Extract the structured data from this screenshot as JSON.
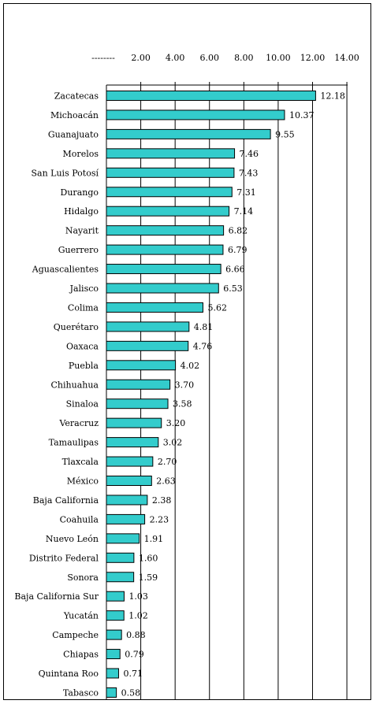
{
  "chart_data": {
    "type": "bar",
    "orientation": "horizontal",
    "axis_leader": "--------",
    "xlim": [
      0,
      14
    ],
    "x_ticks": [
      "2.00",
      "4.00",
      "6.00",
      "8.00",
      "10.00",
      "12.00",
      "14.00"
    ],
    "grid": true,
    "bar_color": "#33CCCC",
    "categories": [
      "Zacatecas",
      "Michoacán",
      "Guanajuato",
      "Morelos",
      "San Luis Potosí",
      "Durango",
      "Hidalgo",
      "Nayarit",
      "Guerrero",
      "Aguascalientes",
      "Jalisco",
      "Colima",
      "Querétaro",
      "Oaxaca",
      "Puebla",
      "Chihuahua",
      "Sinaloa",
      "Veracruz",
      "Tamaulipas",
      "Tlaxcala",
      "México",
      "Baja California",
      "Coahuila",
      "Nuevo León",
      "Distrito Federal",
      "Sonora",
      "Baja California Sur",
      "Yucatán",
      "Campeche",
      "Chiapas",
      "Quintana Roo",
      "Tabasco"
    ],
    "values": [
      12.18,
      10.37,
      9.55,
      7.46,
      7.43,
      7.31,
      7.14,
      6.82,
      6.79,
      6.66,
      6.53,
      5.62,
      4.81,
      4.76,
      4.02,
      3.7,
      3.58,
      3.2,
      3.02,
      2.7,
      2.63,
      2.38,
      2.23,
      1.91,
      1.6,
      1.59,
      1.03,
      1.02,
      0.88,
      0.79,
      0.71,
      0.58
    ],
    "value_labels": [
      "12.18",
      "10.37",
      "9.55",
      "7.46",
      "7.43",
      "7.31",
      "7.14",
      "6.82",
      "6.79",
      "6.66",
      "6.53",
      "5.62",
      "4.81",
      "4.76",
      "4.02",
      "3.70",
      "3.58",
      "3.20",
      "3.02",
      "2.70",
      "2.63",
      "2.38",
      "2.23",
      "1.91",
      "1.60",
      "1.59",
      "1.03",
      "1.02",
      "0.88",
      "0.79",
      "0.71",
      "0.58"
    ]
  }
}
